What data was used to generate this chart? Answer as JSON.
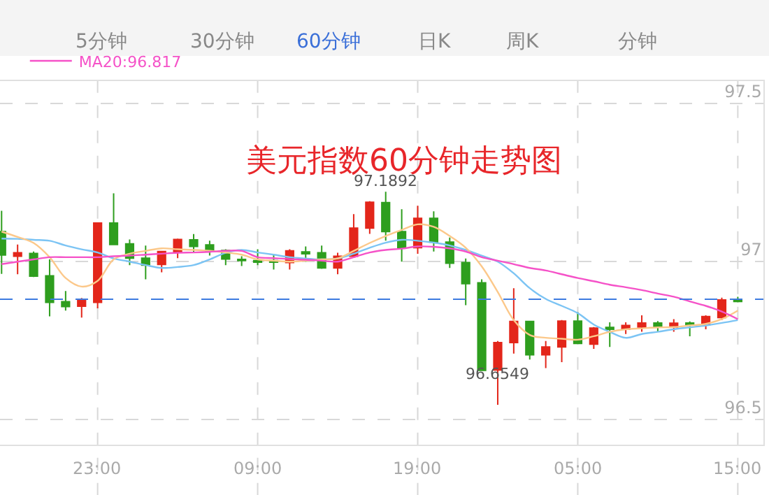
{
  "chart_data": {
    "type": "candlestick",
    "title": "美元指数60分钟走势图",
    "categories": [
      null,
      null,
      null,
      null,
      null,
      null,
      "23:00",
      null,
      null,
      null,
      null,
      null,
      null,
      null,
      null,
      null,
      "09:00",
      null,
      null,
      null,
      null,
      null,
      null,
      null,
      null,
      null,
      "19:00",
      null,
      null,
      null,
      null,
      null,
      null,
      null,
      null,
      null,
      "05:00",
      null,
      null,
      null,
      null,
      null,
      null,
      null,
      null,
      null,
      "15:00"
    ],
    "ohlc": [
      [
        97.094,
        97.16,
        96.96,
        97.02
      ],
      [
        97.016,
        97.053,
        96.959,
        97.027
      ],
      [
        97.025,
        97.031,
        96.95,
        96.953
      ],
      [
        96.954,
        97.006,
        96.826,
        96.87
      ],
      [
        96.872,
        96.906,
        96.844,
        96.857
      ],
      [
        96.858,
        96.884,
        96.822,
        96.876
      ],
      [
        96.87,
        97.121,
        96.851,
        97.121
      ],
      [
        97.121,
        97.215,
        97.053,
        97.053
      ],
      [
        97.055,
        97.069,
        96.988,
        97.01
      ],
      [
        97.01,
        97.05,
        96.943,
        96.988
      ],
      [
        96.99,
        97.031,
        96.965,
        97.031
      ],
      [
        97.028,
        97.072,
        97.01,
        97.069
      ],
      [
        97.068,
        97.086,
        97.028,
        97.047
      ],
      [
        97.052,
        97.065,
        97.018,
        97.031
      ],
      [
        97.034,
        97.038,
        96.988,
        97.007
      ],
      [
        97.006,
        97.016,
        96.985,
        97.002
      ],
      [
        97.002,
        97.038,
        96.988,
        96.997
      ],
      [
        97.002,
        97.021,
        96.974,
        96.997
      ],
      [
        96.996,
        97.038,
        96.974,
        97.033
      ],
      [
        97.03,
        97.047,
        96.999,
        97.024
      ],
      [
        97.027,
        97.05,
        96.976,
        96.979
      ],
      [
        96.979,
        97.027,
        96.959,
        97.016
      ],
      [
        97.016,
        97.149,
        97.016,
        97.105
      ],
      [
        97.105,
        97.19,
        97.087,
        97.187
      ],
      [
        97.186,
        97.22,
        97.065,
        97.094
      ],
      [
        97.094,
        97.165,
        96.999,
        97.043
      ],
      [
        97.043,
        97.176,
        97.024,
        97.136
      ],
      [
        97.136,
        97.158,
        97.031,
        97.061
      ],
      [
        97.061,
        97.075,
        96.979,
        96.994
      ],
      [
        96.996,
        97.009,
        96.861,
        96.929
      ],
      [
        96.932,
        96.943,
        96.655,
        96.655
      ],
      [
        96.656,
        96.748,
        96.546,
        96.743
      ],
      [
        96.743,
        96.915,
        96.708,
        96.81
      ],
      [
        96.81,
        96.81,
        96.689,
        96.704
      ],
      [
        96.704,
        96.748,
        96.662,
        96.729
      ],
      [
        96.729,
        96.814,
        96.681,
        96.811
      ],
      [
        96.811,
        96.839,
        96.74,
        96.74
      ],
      [
        96.738,
        96.792,
        96.723,
        96.789
      ],
      [
        96.791,
        96.807,
        96.729,
        96.785
      ],
      [
        96.785,
        96.807,
        96.77,
        96.797
      ],
      [
        96.792,
        96.829,
        96.777,
        96.805
      ],
      [
        96.805,
        96.811,
        96.777,
        96.792
      ],
      [
        96.792,
        96.817,
        96.777,
        96.804
      ],
      [
        96.805,
        96.81,
        96.763,
        96.8
      ],
      [
        96.8,
        96.829,
        96.785,
        96.825
      ],
      [
        96.822,
        96.885,
        96.814,
        96.878
      ],
      [
        96.879,
        96.888,
        96.87,
        96.873
      ]
    ],
    "colors": [
      "#2e9e1e",
      "#e3261a",
      "#2e9e1e",
      "#2e9e1e",
      "#2e9e1e",
      "#e3261a",
      "#e3261a",
      "#2e9e1e",
      "#2e9e1e",
      "#2e9e1e",
      "#e3261a",
      "#e3261a",
      "#2e9e1e",
      "#2e9e1e",
      "#2e9e1e",
      "#2e9e1e",
      "#2e9e1e",
      "#2e9e1e",
      "#e3261a",
      "#2e9e1e",
      "#2e9e1e",
      "#e3261a",
      "#e3261a",
      "#e3261a",
      "#2e9e1e",
      "#2e9e1e",
      "#e3261a",
      "#2e9e1e",
      "#2e9e1e",
      "#2e9e1e",
      "#2e9e1e",
      "#e3261a",
      "#e3261a",
      "#2e9e1e",
      "#e3261a",
      "#e3261a",
      "#2e9e1e",
      "#e3261a",
      "#2e9e1e",
      "#e3261a",
      "#e3261a",
      "#2e9e1e",
      "#e3261a",
      "#2e9e1e",
      "#e3261a",
      "#e3261a",
      "#2e9e1e"
    ],
    "series": [
      {
        "type": "line",
        "color": "#7cc4f4",
        "values": [
          97.072,
          97.071,
          97.068,
          97.065,
          97.05,
          97.038,
          97.028,
          97.009,
          96.999,
          96.988,
          96.979,
          96.982,
          96.988,
          97.006,
          97.027,
          97.036,
          97.028,
          97.021,
          97.013,
          97.009,
          97.006,
          97.009,
          97.024,
          97.043,
          97.059,
          97.068,
          97.065,
          97.059,
          97.05,
          97.036,
          97.018,
          96.999,
          96.962,
          96.915,
          96.881,
          96.859,
          96.836,
          96.8,
          96.777,
          96.758,
          96.77,
          96.777,
          96.785,
          96.791,
          96.797,
          96.805,
          96.814
        ]
      },
      {
        "type": "line",
        "color": "#fcc88a",
        "values": [
          97.094,
          97.077,
          97.058,
          97.013,
          96.947,
          96.92,
          96.938,
          97.006,
          97.024,
          97.033,
          97.041,
          97.038,
          97.036,
          97.033,
          97.028,
          97.021,
          97.006,
          97.002,
          96.999,
          97.002,
          97.006,
          97.009,
          97.033,
          97.058,
          97.08,
          97.099,
          97.117,
          97.109,
          97.08,
          97.043,
          96.984,
          96.903,
          96.814,
          96.767,
          96.758,
          96.755,
          96.752,
          96.763,
          96.777,
          96.785,
          96.788,
          96.791,
          96.792,
          96.797,
          96.802,
          96.817,
          96.844
        ]
      },
      {
        "type": "line",
        "name": "MA20:96.817",
        "color": "#f552c8",
        "values": [
          96.991,
          96.999,
          97.006,
          97.013,
          97.013,
          97.013,
          97.013,
          97.016,
          97.018,
          97.021,
          97.024,
          97.027,
          97.028,
          97.03,
          97.033,
          97.033,
          97.013,
          97.01,
          97.007,
          97.005,
          97.002,
          96.999,
          97.013,
          97.028,
          97.036,
          97.04,
          97.047,
          97.046,
          97.041,
          97.031,
          97.013,
          97.002,
          96.991,
          96.979,
          96.971,
          96.959,
          96.947,
          96.937,
          96.926,
          96.918,
          96.909,
          96.898,
          96.888,
          96.873,
          96.859,
          96.841,
          96.817
        ]
      }
    ],
    "ylim": [
      96.42,
      97.57
    ],
    "yticks": [
      96.5,
      97,
      97.5
    ],
    "ref_lines": [
      {
        "axis": "y",
        "value": 96.88,
        "color": "#3d7be0",
        "line_style": "dashed"
      }
    ],
    "grid": true,
    "legend": "top left",
    "annotations": [
      "5分钟",
      "30分钟",
      "60分钟",
      "日K",
      "周K",
      "分钟",
      "97.1892",
      "96.6549"
    ]
  }
}
